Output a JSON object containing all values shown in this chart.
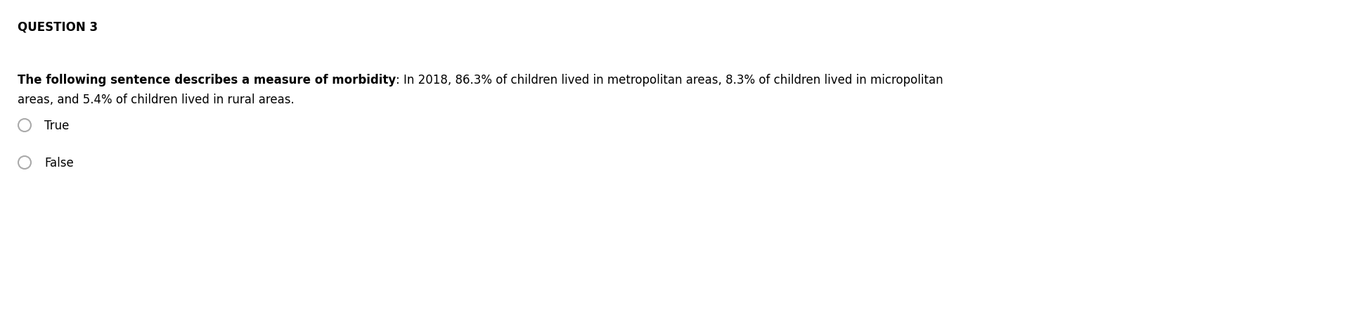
{
  "title": "QUESTION 3",
  "bold_part": "The following sentence describes a measure of morbidity",
  "normal_part_line1": ": In 2018, 86.3% of children lived in metropolitan areas, 8.3% of children lived in micropolitan",
  "normal_part_line2": "areas, and 5.4% of children lived in rural areas.",
  "options": [
    "True",
    "False"
  ],
  "background_color": "#ffffff",
  "text_color": "#000000",
  "circle_color": "#aaaaaa",
  "title_fontsize": 12,
  "body_fontsize": 12,
  "option_fontsize": 12,
  "fig_width": 19.46,
  "fig_height": 4.56,
  "dpi": 100
}
